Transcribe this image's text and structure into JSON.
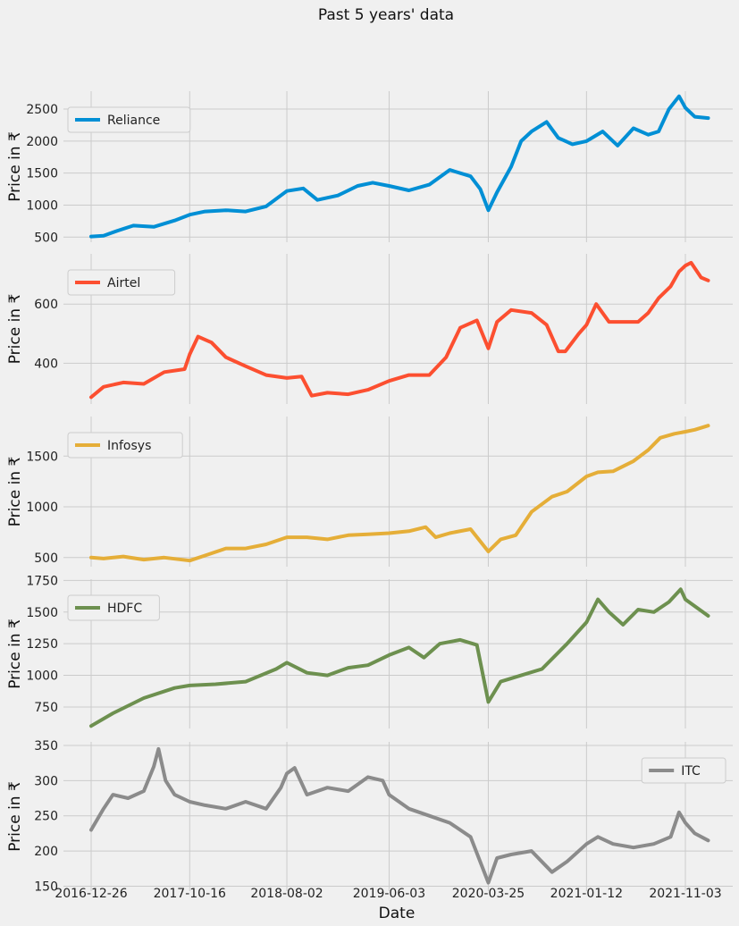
{
  "title": "Past 5 years' data",
  "chart_data": {
    "type": "line",
    "xlabel": "Date",
    "x_ticks": [
      "2016-12-26",
      "2017-10-16",
      "2018-08-02",
      "2019-06-03",
      "2020-03-25",
      "2021-01-12",
      "2021-11-03"
    ],
    "x_range": [
      "2016-12-26",
      "2022-01-10"
    ],
    "panels": [
      {
        "series": {
          "name": "Reliance",
          "color": "#008fd5"
        },
        "ylabel": "Price in ₹",
        "ylim": [
          420,
          2780
        ],
        "yticks": [
          500,
          1000,
          1500,
          2000,
          2500
        ],
        "legend": "top-left",
        "points": [
          [
            "2016-12-26",
            510
          ],
          [
            "2017-02-01",
            520
          ],
          [
            "2017-03-15",
            600
          ],
          [
            "2017-05-01",
            680
          ],
          [
            "2017-07-01",
            660
          ],
          [
            "2017-09-01",
            760
          ],
          [
            "2017-10-16",
            850
          ],
          [
            "2017-12-01",
            900
          ],
          [
            "2018-02-01",
            920
          ],
          [
            "2018-04-01",
            900
          ],
          [
            "2018-06-01",
            980
          ],
          [
            "2018-08-02",
            1220
          ],
          [
            "2018-09-20",
            1260
          ],
          [
            "2018-11-01",
            1080
          ],
          [
            "2019-01-01",
            1150
          ],
          [
            "2019-03-01",
            1300
          ],
          [
            "2019-04-15",
            1350
          ],
          [
            "2019-06-03",
            1300
          ],
          [
            "2019-08-01",
            1230
          ],
          [
            "2019-10-01",
            1320
          ],
          [
            "2019-12-01",
            1550
          ],
          [
            "2020-02-01",
            1450
          ],
          [
            "2020-03-01",
            1250
          ],
          [
            "2020-03-25",
            920
          ],
          [
            "2020-04-20",
            1200
          ],
          [
            "2020-06-01",
            1600
          ],
          [
            "2020-07-01",
            2000
          ],
          [
            "2020-08-01",
            2150
          ],
          [
            "2020-09-15",
            2300
          ],
          [
            "2020-10-20",
            2050
          ],
          [
            "2020-12-01",
            1950
          ],
          [
            "2021-01-12",
            2000
          ],
          [
            "2021-03-01",
            2150
          ],
          [
            "2021-04-15",
            1930
          ],
          [
            "2021-06-01",
            2200
          ],
          [
            "2021-07-15",
            2100
          ],
          [
            "2021-08-15",
            2150
          ],
          [
            "2021-09-15",
            2500
          ],
          [
            "2021-10-15",
            2700
          ],
          [
            "2021-11-03",
            2520
          ],
          [
            "2021-12-01",
            2380
          ],
          [
            "2022-01-10",
            2360
          ]
        ]
      },
      {
        "series": {
          "name": "Airtel",
          "color": "#fc4f30"
        },
        "ylabel": "Price in ₹",
        "ylim": [
          262,
          770
        ],
        "yticks": [
          400,
          600
        ],
        "legend": "top-left",
        "points": [
          [
            "2016-12-26",
            285
          ],
          [
            "2017-02-01",
            320
          ],
          [
            "2017-04-01",
            335
          ],
          [
            "2017-06-01",
            330
          ],
          [
            "2017-08-01",
            370
          ],
          [
            "2017-10-01",
            380
          ],
          [
            "2017-10-16",
            430
          ],
          [
            "2017-11-10",
            490
          ],
          [
            "2017-12-20",
            470
          ],
          [
            "2018-02-01",
            420
          ],
          [
            "2018-04-01",
            390
          ],
          [
            "2018-06-01",
            360
          ],
          [
            "2018-08-02",
            350
          ],
          [
            "2018-09-15",
            355
          ],
          [
            "2018-10-15",
            290
          ],
          [
            "2018-12-01",
            300
          ],
          [
            "2019-02-01",
            295
          ],
          [
            "2019-04-01",
            310
          ],
          [
            "2019-06-03",
            340
          ],
          [
            "2019-08-01",
            360
          ],
          [
            "2019-10-01",
            360
          ],
          [
            "2019-11-20",
            420
          ],
          [
            "2020-01-01",
            520
          ],
          [
            "2020-02-20",
            545
          ],
          [
            "2020-03-25",
            450
          ],
          [
            "2020-04-20",
            540
          ],
          [
            "2020-06-01",
            580
          ],
          [
            "2020-08-01",
            570
          ],
          [
            "2020-09-15",
            530
          ],
          [
            "2020-10-20",
            440
          ],
          [
            "2020-11-10",
            440
          ],
          [
            "2020-12-20",
            500
          ],
          [
            "2021-01-12",
            530
          ],
          [
            "2021-02-10",
            600
          ],
          [
            "2021-03-20",
            540
          ],
          [
            "2021-05-01",
            540
          ],
          [
            "2021-06-15",
            540
          ],
          [
            "2021-07-15",
            570
          ],
          [
            "2021-08-15",
            620
          ],
          [
            "2021-09-20",
            660
          ],
          [
            "2021-10-15",
            710
          ],
          [
            "2021-11-03",
            730
          ],
          [
            "2021-11-20",
            740
          ],
          [
            "2021-12-20",
            690
          ],
          [
            "2022-01-10",
            680
          ]
        ]
      },
      {
        "series": {
          "name": "Infosys",
          "color": "#e5ae38"
        },
        "ylabel": "Price in ₹",
        "ylim": [
          410,
          1890
        ],
        "yticks": [
          500,
          1000,
          1500
        ],
        "legend": "top-left",
        "points": [
          [
            "2016-12-26",
            500
          ],
          [
            "2017-02-01",
            490
          ],
          [
            "2017-04-01",
            510
          ],
          [
            "2017-06-01",
            480
          ],
          [
            "2017-08-01",
            500
          ],
          [
            "2017-10-16",
            470
          ],
          [
            "2017-12-01",
            520
          ],
          [
            "2018-02-01",
            590
          ],
          [
            "2018-04-01",
            590
          ],
          [
            "2018-06-01",
            630
          ],
          [
            "2018-08-02",
            700
          ],
          [
            "2018-10-01",
            700
          ],
          [
            "2018-12-01",
            680
          ],
          [
            "2019-02-01",
            720
          ],
          [
            "2019-04-01",
            730
          ],
          [
            "2019-06-03",
            740
          ],
          [
            "2019-08-01",
            760
          ],
          [
            "2019-09-20",
            800
          ],
          [
            "2019-10-20",
            700
          ],
          [
            "2019-12-01",
            740
          ],
          [
            "2020-02-01",
            780
          ],
          [
            "2020-03-25",
            560
          ],
          [
            "2020-05-01",
            680
          ],
          [
            "2020-06-15",
            720
          ],
          [
            "2020-08-01",
            950
          ],
          [
            "2020-10-01",
            1100
          ],
          [
            "2020-11-15",
            1150
          ],
          [
            "2021-01-12",
            1300
          ],
          [
            "2021-02-15",
            1340
          ],
          [
            "2021-04-01",
            1350
          ],
          [
            "2021-06-01",
            1450
          ],
          [
            "2021-07-15",
            1560
          ],
          [
            "2021-08-20",
            1680
          ],
          [
            "2021-10-01",
            1720
          ],
          [
            "2021-11-03",
            1740
          ],
          [
            "2021-12-01",
            1760
          ],
          [
            "2022-01-10",
            1800
          ]
        ]
      },
      {
        "series": {
          "name": "HDFC",
          "color": "#6d904f"
        },
        "ylabel": "Price in ₹",
        "ylim": [
          580,
          1760
        ],
        "yticks": [
          750,
          1000,
          1250,
          1500,
          1750
        ],
        "legend": "top-left",
        "points": [
          [
            "2016-12-26",
            600
          ],
          [
            "2017-03-01",
            700
          ],
          [
            "2017-06-01",
            820
          ],
          [
            "2017-09-01",
            900
          ],
          [
            "2017-10-16",
            920
          ],
          [
            "2018-01-01",
            930
          ],
          [
            "2018-04-01",
            950
          ],
          [
            "2018-07-01",
            1050
          ],
          [
            "2018-08-02",
            1100
          ],
          [
            "2018-10-01",
            1020
          ],
          [
            "2018-12-01",
            1000
          ],
          [
            "2019-02-01",
            1060
          ],
          [
            "2019-04-01",
            1080
          ],
          [
            "2019-06-03",
            1160
          ],
          [
            "2019-08-01",
            1220
          ],
          [
            "2019-09-15",
            1140
          ],
          [
            "2019-11-01",
            1250
          ],
          [
            "2020-01-01",
            1280
          ],
          [
            "2020-02-20",
            1240
          ],
          [
            "2020-03-25",
            790
          ],
          [
            "2020-05-01",
            950
          ],
          [
            "2020-07-01",
            1000
          ],
          [
            "2020-09-01",
            1050
          ],
          [
            "2020-11-15",
            1250
          ],
          [
            "2021-01-12",
            1420
          ],
          [
            "2021-02-15",
            1600
          ],
          [
            "2021-03-20",
            1500
          ],
          [
            "2021-05-01",
            1400
          ],
          [
            "2021-06-15",
            1520
          ],
          [
            "2021-08-01",
            1500
          ],
          [
            "2021-09-15",
            1580
          ],
          [
            "2021-10-20",
            1680
          ],
          [
            "2021-11-03",
            1600
          ],
          [
            "2021-12-15",
            1520
          ],
          [
            "2022-01-10",
            1470
          ]
        ]
      },
      {
        "series": {
          "name": "ITC",
          "color": "#8b8b8b"
        },
        "ylabel": "Price in ₹",
        "ylim": [
          143,
          355
        ],
        "yticks": [
          150,
          200,
          250,
          300,
          350
        ],
        "legend": "top-right",
        "points": [
          [
            "2016-12-26",
            230
          ],
          [
            "2017-02-01",
            260
          ],
          [
            "2017-03-01",
            280
          ],
          [
            "2017-04-15",
            275
          ],
          [
            "2017-06-01",
            285
          ],
          [
            "2017-07-01",
            320
          ],
          [
            "2017-07-15",
            345
          ],
          [
            "2017-08-05",
            300
          ],
          [
            "2017-09-01",
            280
          ],
          [
            "2017-10-16",
            270
          ],
          [
            "2017-12-01",
            265
          ],
          [
            "2018-02-01",
            260
          ],
          [
            "2018-04-01",
            270
          ],
          [
            "2018-06-01",
            260
          ],
          [
            "2018-07-15",
            290
          ],
          [
            "2018-08-02",
            310
          ],
          [
            "2018-08-25",
            318
          ],
          [
            "2018-10-01",
            280
          ],
          [
            "2018-12-01",
            290
          ],
          [
            "2019-02-01",
            285
          ],
          [
            "2019-04-01",
            305
          ],
          [
            "2019-05-15",
            300
          ],
          [
            "2019-06-03",
            280
          ],
          [
            "2019-08-01",
            260
          ],
          [
            "2019-10-01",
            250
          ],
          [
            "2019-12-01",
            240
          ],
          [
            "2020-02-01",
            220
          ],
          [
            "2020-03-25",
            155
          ],
          [
            "2020-04-20",
            190
          ],
          [
            "2020-06-01",
            195
          ],
          [
            "2020-08-01",
            200
          ],
          [
            "2020-10-01",
            170
          ],
          [
            "2020-11-15",
            185
          ],
          [
            "2021-01-12",
            210
          ],
          [
            "2021-02-15",
            220
          ],
          [
            "2021-04-01",
            210
          ],
          [
            "2021-06-01",
            205
          ],
          [
            "2021-08-01",
            210
          ],
          [
            "2021-09-20",
            220
          ],
          [
            "2021-10-15",
            255
          ],
          [
            "2021-11-03",
            240
          ],
          [
            "2021-12-01",
            225
          ],
          [
            "2022-01-10",
            215
          ]
        ]
      }
    ]
  }
}
